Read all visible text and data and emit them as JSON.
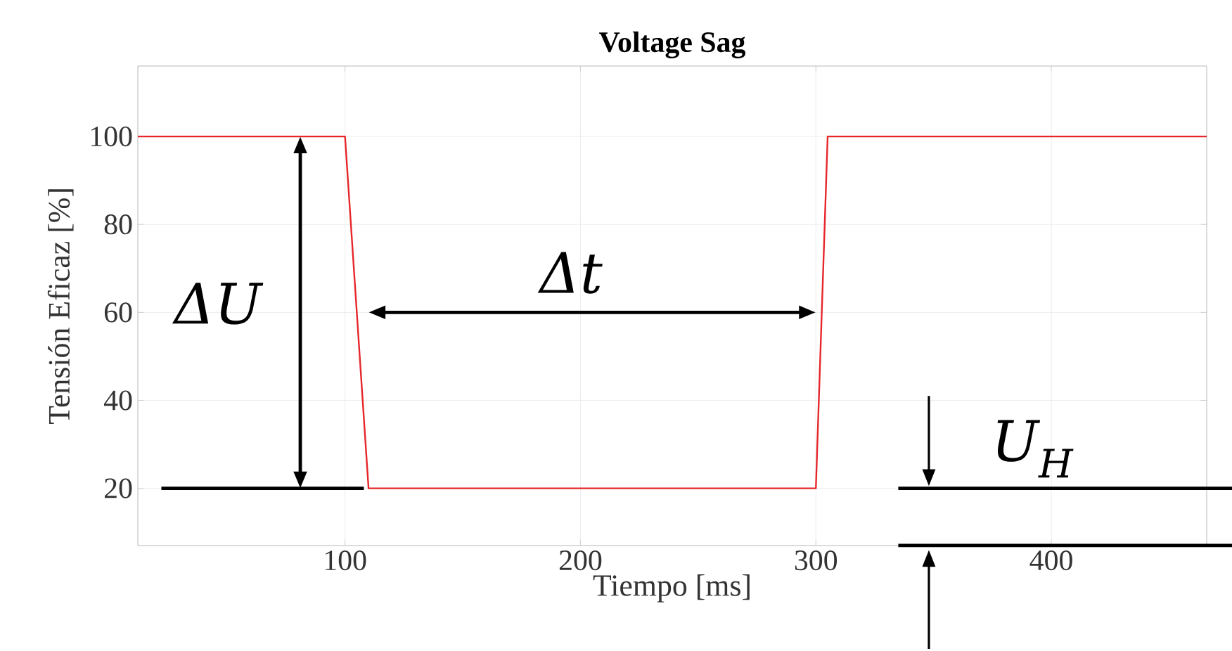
{
  "chart_data": {
    "type": "line",
    "title": "Voltage Sag",
    "xlabel": "Tiempo [ms]",
    "ylabel": "Tensión Eficaz [%]",
    "x": [
      12,
      100,
      110,
      300,
      305,
      466
    ],
    "series": [
      {
        "color": "#e6262b",
        "values": [
          100,
          100,
          20,
          20,
          100,
          100
        ]
      }
    ],
    "xlim": [
      12,
      466
    ],
    "ylim": [
      7,
      116
    ],
    "xticks": [
      100,
      200,
      300,
      400
    ],
    "yticks": [
      20,
      40,
      60,
      80,
      100
    ],
    "grid": true,
    "line_style": "solid",
    "marker": "none",
    "ref_lines": [
      {
        "axis": "y",
        "value": 20,
        "color": "#000000"
      },
      {
        "axis": "y",
        "value": 7,
        "color": "#000000"
      }
    ],
    "annotations": [
      "ΔU",
      "Δt",
      "U$_{H}$"
    ]
  }
}
